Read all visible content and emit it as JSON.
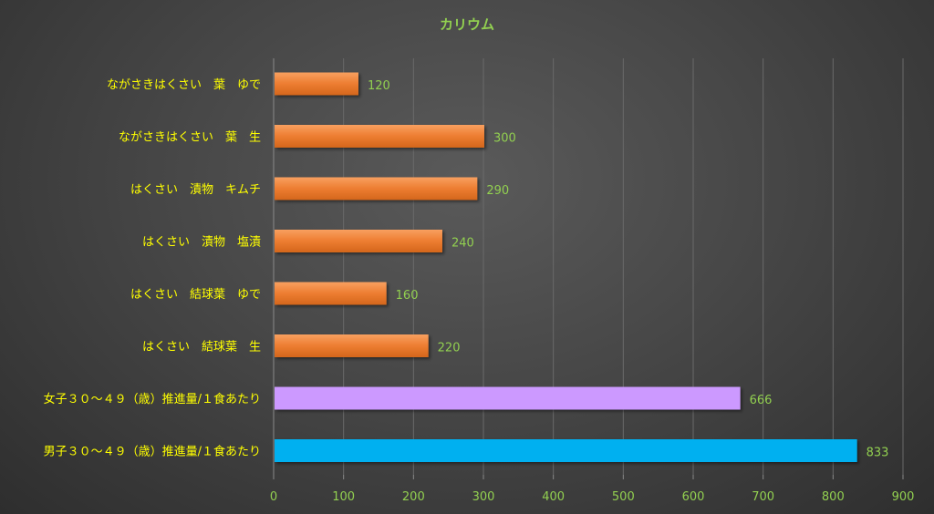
{
  "chart_data": {
    "type": "bar",
    "orientation": "horizontal",
    "title": "カリウム",
    "categories": [
      "ながさきはくさい　葉　ゆで",
      "ながさきはくさい　葉　生",
      "はくさい　漬物　キムチ",
      "はくさい　漬物　塩漬",
      "はくさい　結球葉　ゆで",
      "はくさい　結球葉　生",
      "女子３０～４９（歳）推進量/１食あたり",
      "男子３０～４９（歳）推進量/１食あたり"
    ],
    "values": [
      120,
      300,
      290,
      240,
      160,
      220,
      666,
      833
    ],
    "bar_colors": [
      "#ED7D31",
      "#ED7D31",
      "#ED7D31",
      "#ED7D31",
      "#ED7D31",
      "#ED7D31",
      "#CC99FF",
      "#00B0F0"
    ],
    "xlim": [
      0,
      900
    ],
    "xticks": [
      0,
      100,
      200,
      300,
      400,
      500,
      600,
      700,
      800,
      900
    ],
    "grid": "vertical",
    "legend": "none"
  },
  "colors": {
    "title": "#92D050",
    "category_label": "#FFFF00",
    "tick_label": "#92D050",
    "data_label": "#92D050",
    "gridline": "#6a6a6a",
    "axis": "#8a8a8a"
  }
}
